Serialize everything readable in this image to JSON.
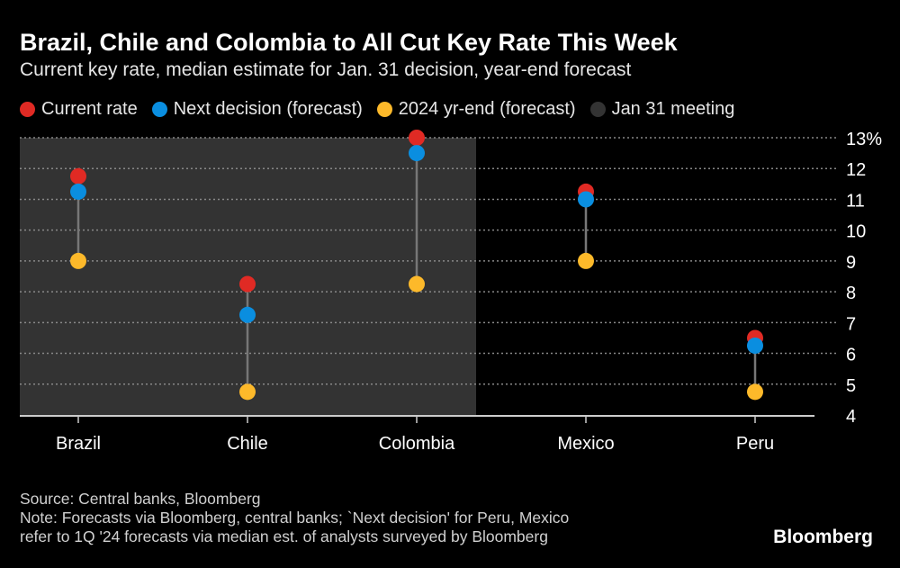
{
  "title": "Brazil, Chile and Colombia to All Cut Key Rate This Week",
  "subtitle": "Current key rate, median estimate for Jan. 31 decision, year-end forecast",
  "legend": [
    {
      "label": "Current rate",
      "color": "#e02a24"
    },
    {
      "label": "Next decision (forecast)",
      "color": "#0a8ee0"
    },
    {
      "label": "2024 yr-end (forecast)",
      "color": "#fdb92a"
    },
    {
      "label": "Jan 31 meeting",
      "color": "#333333"
    }
  ],
  "chart_data": {
    "type": "dot-range",
    "categories": [
      "Brazil",
      "Chile",
      "Colombia",
      "Mexico",
      "Peru"
    ],
    "series": [
      {
        "name": "Current rate",
        "values": [
          11.75,
          8.25,
          13.0,
          11.25,
          6.5
        ],
        "color": "#e02a24"
      },
      {
        "name": "Next decision (forecast)",
        "values": [
          11.25,
          7.25,
          12.5,
          11.0,
          6.25
        ],
        "color": "#0a8ee0"
      },
      {
        "name": "2024 yr-end (forecast)",
        "values": [
          9.0,
          4.75,
          8.25,
          9.0,
          4.75
        ],
        "color": "#fdb92a"
      }
    ],
    "highlighted_categories": [
      "Brazil",
      "Chile",
      "Colombia"
    ],
    "highlight_label": "Jan 31 meeting",
    "ylim": [
      4,
      13
    ],
    "yticks": [
      "4",
      "5",
      "6",
      "7",
      "8",
      "9",
      "10",
      "11",
      "12",
      "13%"
    ],
    "grid": true,
    "legend_position": "top"
  },
  "footer": {
    "source": "Source: Central banks, Bloomberg",
    "note1": "Note: Forecasts via Bloomberg, central banks; `Next decision' for Peru, Mexico",
    "note2": "refer to 1Q '24 forecasts via median est. of analysts surveyed by Bloomberg"
  },
  "logo": "Bloomberg"
}
